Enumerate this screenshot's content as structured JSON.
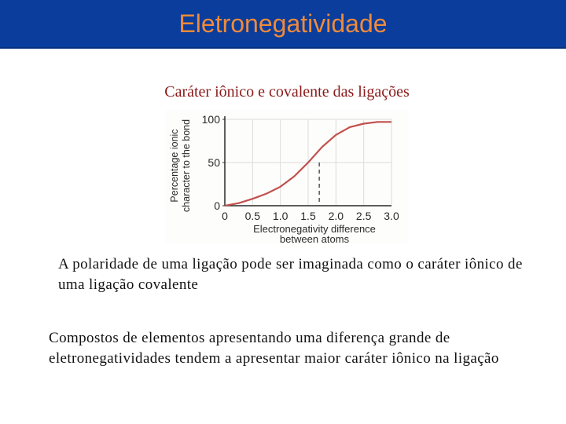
{
  "slide": {
    "title": "Eletronegatividade",
    "subtitle": "Caráter iônico e covalente das ligações",
    "paragraph1": "A polaridade de uma ligação pode ser imaginada como o caráter iônico de uma ligação covalente",
    "paragraph2": "Compostos de elementos apresentando uma diferença grande de eletronegatividades tendem a apresentar maior caráter iônico na ligação"
  },
  "colors": {
    "title_bar": "#0a3d9c",
    "title_text": "#f08a3a",
    "subtitle_text": "#8b1a1a",
    "curve": "#c0504d",
    "chart_ink": "#2a2a2a"
  },
  "chart_data": {
    "type": "line",
    "xlabel_lines": [
      "Electronegativity difference",
      "between atoms"
    ],
    "ylabel_lines": [
      "Percentage ionic",
      "character to the bond"
    ],
    "x_ticks": [
      "0",
      "0.5",
      "1.0",
      "1.5",
      "2.0",
      "2.5",
      "3.0"
    ],
    "x_tick_values": [
      0,
      0.5,
      1.0,
      1.5,
      2.0,
      2.5,
      3.0
    ],
    "y_ticks": [
      "0",
      "50",
      "100"
    ],
    "y_tick_values": [
      0,
      50,
      100
    ],
    "xlim": [
      0,
      3.0
    ],
    "ylim": [
      0,
      100
    ],
    "grid": true,
    "series": [
      {
        "x": [
          0,
          0.25,
          0.5,
          0.75,
          1.0,
          1.25,
          1.5,
          1.75,
          2.0,
          2.25,
          2.5,
          2.75,
          3.0
        ],
        "y": [
          0,
          3,
          8,
          14,
          22,
          34,
          50,
          68,
          82,
          91,
          95,
          97,
          97
        ]
      }
    ],
    "reference_line": {
      "x": 1.7,
      "y": 50,
      "style": "dashed"
    }
  }
}
